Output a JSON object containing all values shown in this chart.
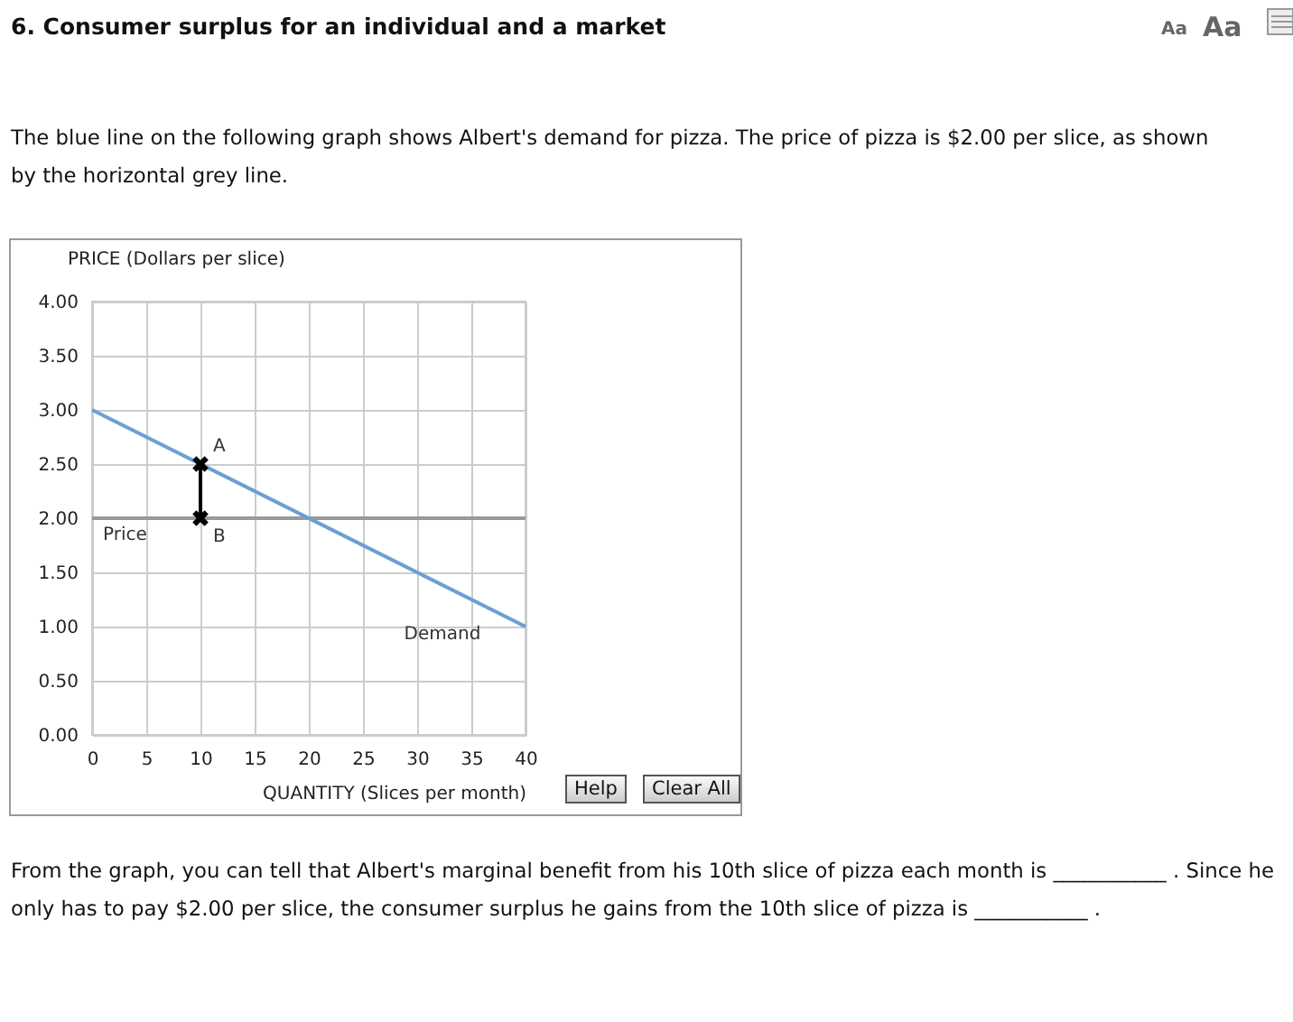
{
  "chart_data": {
    "type": "line",
    "title": "6. Consumer surplus for an individual and a market",
    "subtitle": "The blue line on the following graph shows Albert's demand for pizza. The price of pizza is $2.00 per slice, as shown by the horizontal grey line.",
    "xlabel": "QUANTITY (Slices per month)",
    "ylabel": "PRICE (Dollars per slice)",
    "xlim": [
      0,
      40
    ],
    "xticks": [
      0,
      5,
      10,
      15,
      20,
      25,
      30,
      35,
      40
    ],
    "ylim": [
      0,
      4
    ],
    "yticks": [
      {
        "value": 0,
        "label": "0.00"
      },
      {
        "value": 0.5,
        "label": "0.50"
      },
      {
        "value": 1,
        "label": "1.00"
      },
      {
        "value": 1.5,
        "label": "1.50"
      },
      {
        "value": 2,
        "label": "2.00"
      },
      {
        "value": 2.5,
        "label": "2.50"
      },
      {
        "value": 3,
        "label": "3.00"
      },
      {
        "value": 3.5,
        "label": "3.50"
      },
      {
        "value": 4,
        "label": "4.00"
      }
    ],
    "grid": true,
    "series": [
      {
        "name": "Demand",
        "color": "#6a9fd4",
        "x": [
          0,
          40
        ],
        "values": [
          3,
          1
        ]
      },
      {
        "marker": "cross",
        "color": "#000000",
        "x": [
          10,
          10
        ],
        "values": [
          2.5,
          2
        ]
      }
    ],
    "ref_lines": [
      {
        "axis": "y",
        "value": 2,
        "label": "Price",
        "color": "#999999"
      }
    ],
    "annotations": [
      {
        "text": "A",
        "x": 10,
        "y": 2.5
      },
      {
        "text": "B",
        "x": 10,
        "y": 2
      },
      "Aa",
      "Aa",
      "Help",
      "Clear All",
      "From the graph, you can tell that Albert's marginal benefit from his 10th slice of pizza each month is ___________ . Since he only has to pay $2.00 per slice, the consumer surplus he gains from the 10th slice of pizza is ___________ ."
    ]
  }
}
